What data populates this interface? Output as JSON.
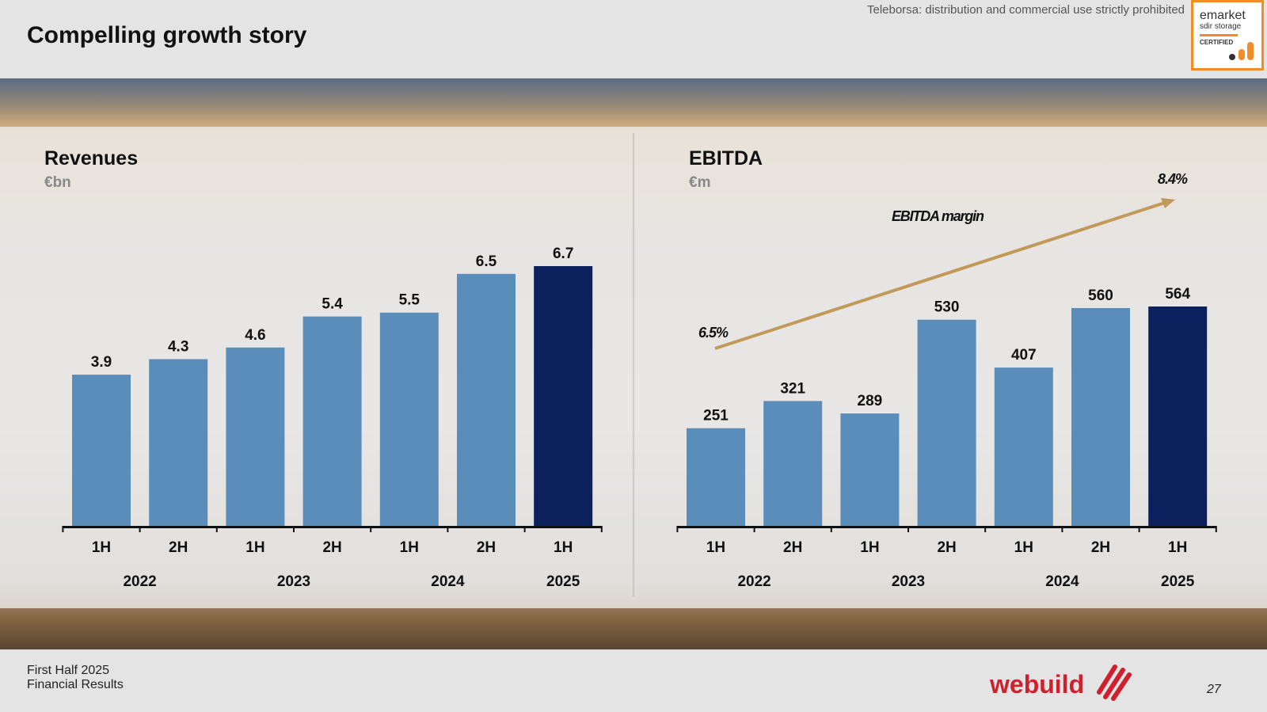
{
  "header": {
    "title": "Compelling growth story",
    "disclaimer": "Teleborsa: distribution and commercial use strictly prohibited",
    "badge": {
      "line1": "emarket",
      "line2": "sdir storage",
      "line3": "CERTIFIED"
    }
  },
  "footer": {
    "line1": "First Half 2025",
    "line2": "Financial Results",
    "logo": "webuild",
    "page": "27"
  },
  "colors": {
    "bar": "#5b8dbb",
    "bar_highlight": "#0a215e",
    "margin_arrow": "#c19a5a"
  },
  "chart_data": [
    {
      "type": "bar",
      "title": "Revenues",
      "unit": "€bn",
      "categories": [
        "1H",
        "2H",
        "1H",
        "2H",
        "1H",
        "2H",
        "1H"
      ],
      "years": [
        {
          "label": "2022",
          "from": 0,
          "to": 1
        },
        {
          "label": "2023",
          "from": 2,
          "to": 3
        },
        {
          "label": "2024",
          "from": 4,
          "to": 5
        },
        {
          "label": "2025",
          "from": 6,
          "to": 6
        }
      ],
      "values": [
        3.9,
        4.3,
        4.6,
        5.4,
        5.5,
        6.5,
        6.7
      ],
      "data_labels": [
        "3.9",
        "4.3",
        "4.6",
        "5.4",
        "5.5",
        "6.5",
        "6.7"
      ],
      "highlight_index": 6,
      "ylim": [
        0,
        6.7
      ]
    },
    {
      "type": "bar",
      "title": "EBITDA",
      "unit": "€m",
      "categories": [
        "1H",
        "2H",
        "1H",
        "2H",
        "1H",
        "2H",
        "1H"
      ],
      "years": [
        {
          "label": "2022",
          "from": 0,
          "to": 1
        },
        {
          "label": "2023",
          "from": 2,
          "to": 3
        },
        {
          "label": "2024",
          "from": 4,
          "to": 5
        },
        {
          "label": "2025",
          "from": 6,
          "to": 6
        }
      ],
      "values": [
        251,
        321,
        289,
        530,
        407,
        560,
        564
      ],
      "data_labels": [
        "251",
        "321",
        "289",
        "530",
        "407",
        "560",
        "564"
      ],
      "highlight_index": 6,
      "ylim": [
        0,
        564
      ],
      "annotation": {
        "label": "EBITDA margin",
        "start_label": "6.5%",
        "end_label": "8.4%",
        "start_value": 6.5,
        "end_value": 8.4
      }
    }
  ]
}
